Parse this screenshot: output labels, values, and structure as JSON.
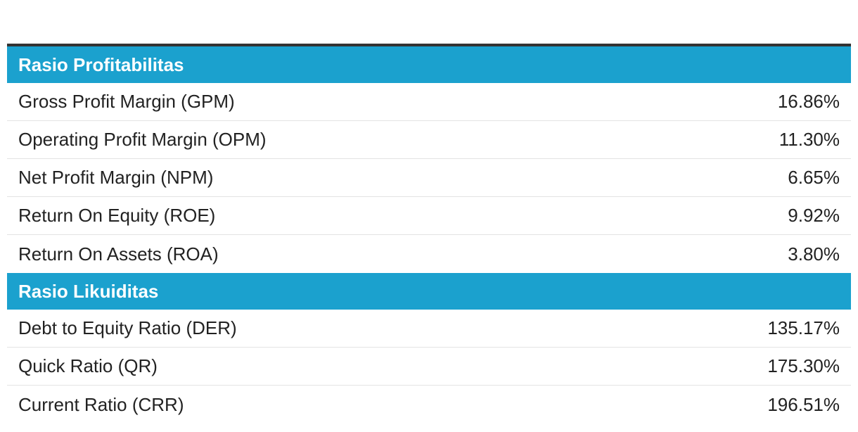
{
  "sections": [
    {
      "title": "Rasio Profitabilitas",
      "rows": [
        {
          "label": "Gross Profit Margin (GPM)",
          "value": "16.86%"
        },
        {
          "label": "Operating Profit Margin (OPM)",
          "value": "11.30%"
        },
        {
          "label": "Net Profit Margin (NPM)",
          "value": "6.65%"
        },
        {
          "label": "Return On Equity (ROE)",
          "value": "9.92%"
        },
        {
          "label": "Return On Assets (ROA)",
          "value": "3.80%"
        }
      ]
    },
    {
      "title": "Rasio Likuiditas",
      "rows": [
        {
          "label": "Debt to Equity Ratio (DER)",
          "value": "135.17%"
        },
        {
          "label": "Quick Ratio (QR)",
          "value": "175.30%"
        },
        {
          "label": "Current Ratio (CRR)",
          "value": "196.51%"
        }
      ]
    }
  ],
  "colors": {
    "header_bg": "#1ba1ce",
    "header_text": "#ffffff",
    "top_border": "#333333",
    "row_divider": "#e3e3e3"
  }
}
